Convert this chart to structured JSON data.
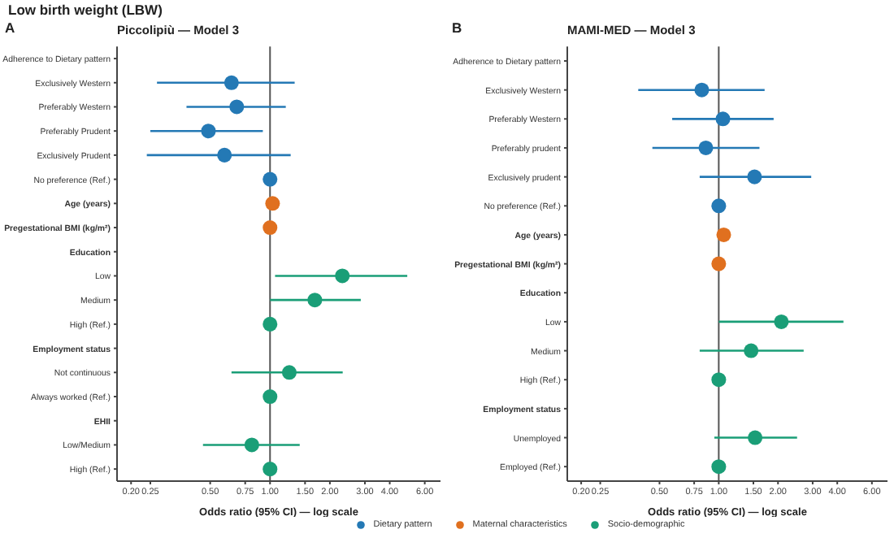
{
  "chart_data": [
    {
      "type": "scatter",
      "orientation": "horizontal",
      "title": "Piccolipiù — Model 3",
      "annotations": [
        "Low birth weight (LBW)",
        "A"
      ],
      "xlabel": "Odds ratio (95% CI) — log scale",
      "log": "x",
      "marker": "circle",
      "legend": "bottom",
      "categories": [
        "Adherence to Dietary pattern",
        "Exclusively Western",
        "Preferably Western",
        "Preferably Prudent",
        "Exclusively Prudent",
        "No preference (Ref.)",
        "Age (years)",
        "Pregestational BMI (kg/m²)",
        "Education",
        "Low",
        "Medium",
        "High (Ref.)",
        "Employment status",
        "Not continuous",
        "Always worked (Ref.)",
        "EHII",
        "Low/Medium",
        "High (Ref.)"
      ],
      "series": [
        {
          "name": "Dietary pattern",
          "color": "#2479b5",
          "values": [
            null,
            0.64,
            0.68,
            0.49,
            0.59,
            1,
            null,
            null,
            null,
            null,
            null,
            null,
            null,
            null,
            null,
            null,
            null,
            null
          ],
          "errors": [
            null,
            [
              0.27,
              1.33
            ],
            [
              0.38,
              1.2
            ],
            [
              0.25,
              0.92
            ],
            [
              0.24,
              1.27
            ],
            null,
            null,
            null,
            null,
            null,
            null,
            null,
            null,
            null,
            null,
            null,
            null,
            null
          ]
        },
        {
          "name": "Maternal characteristics",
          "color": "#e0701f",
          "values": [
            null,
            null,
            null,
            null,
            null,
            null,
            1.03,
            1,
            null,
            null,
            null,
            null,
            null,
            null,
            null,
            null,
            null,
            null
          ],
          "errors": [
            null,
            null,
            null,
            null,
            null,
            null,
            null,
            null,
            null,
            null,
            null,
            null,
            null,
            null,
            null,
            null,
            null,
            null
          ]
        },
        {
          "name": "Socio-demographic",
          "color": "#1a9e77",
          "values": [
            null,
            null,
            null,
            null,
            null,
            null,
            null,
            null,
            null,
            2.31,
            1.68,
            1,
            null,
            1.25,
            1,
            null,
            0.81,
            1
          ],
          "errors": [
            null,
            null,
            null,
            null,
            null,
            null,
            null,
            null,
            null,
            [
              1.06,
              4.9
            ],
            [
              1,
              2.86
            ],
            null,
            null,
            [
              0.64,
              2.32
            ],
            null,
            null,
            [
              0.46,
              1.41
            ],
            null
          ]
        }
      ],
      "xlim": [
        0.17,
        7.2
      ],
      "xticks": [
        {
          "value": 0.2,
          "label": "0.20"
        },
        {
          "value": 0.25,
          "label": "0.25"
        },
        {
          "value": 0.5,
          "label": "0.50"
        },
        {
          "value": 0.75,
          "label": "0.75"
        },
        {
          "value": 1,
          "label": "1.00"
        },
        {
          "value": 1.5,
          "label": "1.50"
        },
        {
          "value": 2,
          "label": "2.00"
        },
        {
          "value": 3,
          "label": "3.00"
        },
        {
          "value": 4,
          "label": "4.00"
        },
        {
          "value": 6,
          "label": "6.00"
        }
      ],
      "ref_lines": [
        {
          "axis": "x",
          "value": 1,
          "color": "#555555"
        }
      ]
    },
    {
      "type": "scatter",
      "orientation": "horizontal",
      "title": "MAMI-MED — Model 3",
      "annotations": [
        "B"
      ],
      "xlabel": "Odds ratio (95% CI) — log scale",
      "log": "x",
      "marker": "circle",
      "legend": "bottom",
      "categories": [
        "Adherence to Dietary pattern",
        "Exclusively Western",
        "Preferably Western",
        "Preferably prudent",
        "Exclusively prudent",
        "No preference (Ref.)",
        "Age (years)",
        "Pregestational BMI (kg/m²)",
        "Education",
        "Low",
        "Medium",
        "High (Ref.)",
        "Employment status",
        "Unemployed",
        "Employed (Ref.)"
      ],
      "series": [
        {
          "name": "Dietary pattern",
          "color": "#2479b5",
          "values": [
            null,
            0.82,
            1.05,
            0.86,
            1.52,
            1,
            null,
            null,
            null,
            null,
            null,
            null,
            null,
            null,
            null
          ],
          "errors": [
            null,
            [
              0.39,
              1.71
            ],
            [
              0.58,
              1.9
            ],
            [
              0.46,
              1.61
            ],
            [
              0.8,
              2.95
            ],
            null,
            null,
            null,
            null,
            null,
            null,
            null,
            null,
            null,
            null
          ]
        },
        {
          "name": "Maternal characteristics",
          "color": "#e0701f",
          "values": [
            null,
            null,
            null,
            null,
            null,
            null,
            1.06,
            1,
            null,
            null,
            null,
            null,
            null,
            null,
            null
          ],
          "errors": [
            null,
            null,
            null,
            null,
            null,
            null,
            null,
            null,
            null,
            null,
            null,
            null,
            null,
            null,
            null
          ]
        },
        {
          "name": "Socio-demographic",
          "color": "#1a9e77",
          "values": [
            null,
            null,
            null,
            null,
            null,
            null,
            null,
            null,
            null,
            2.08,
            1.46,
            1,
            null,
            1.53,
            1
          ],
          "errors": [
            null,
            null,
            null,
            null,
            null,
            null,
            null,
            null,
            null,
            [
              1,
              4.3
            ],
            [
              0.8,
              2.7
            ],
            null,
            null,
            [
              0.95,
              2.5
            ],
            null
          ]
        }
      ],
      "xlim": [
        0.17,
        7.2
      ],
      "xticks": [
        {
          "value": 0.2,
          "label": "0.20"
        },
        {
          "value": 0.25,
          "label": "0.25"
        },
        {
          "value": 0.5,
          "label": "0.50"
        },
        {
          "value": 0.75,
          "label": "0.75"
        },
        {
          "value": 1,
          "label": "1.00"
        },
        {
          "value": 1.5,
          "label": "1.50"
        },
        {
          "value": 2,
          "label": "2.00"
        },
        {
          "value": 3,
          "label": "3.00"
        },
        {
          "value": 4,
          "label": "4.00"
        },
        {
          "value": 6,
          "label": "6.00"
        }
      ],
      "ref_lines": [
        {
          "axis": "x",
          "value": 1,
          "color": "#555555"
        }
      ]
    }
  ]
}
